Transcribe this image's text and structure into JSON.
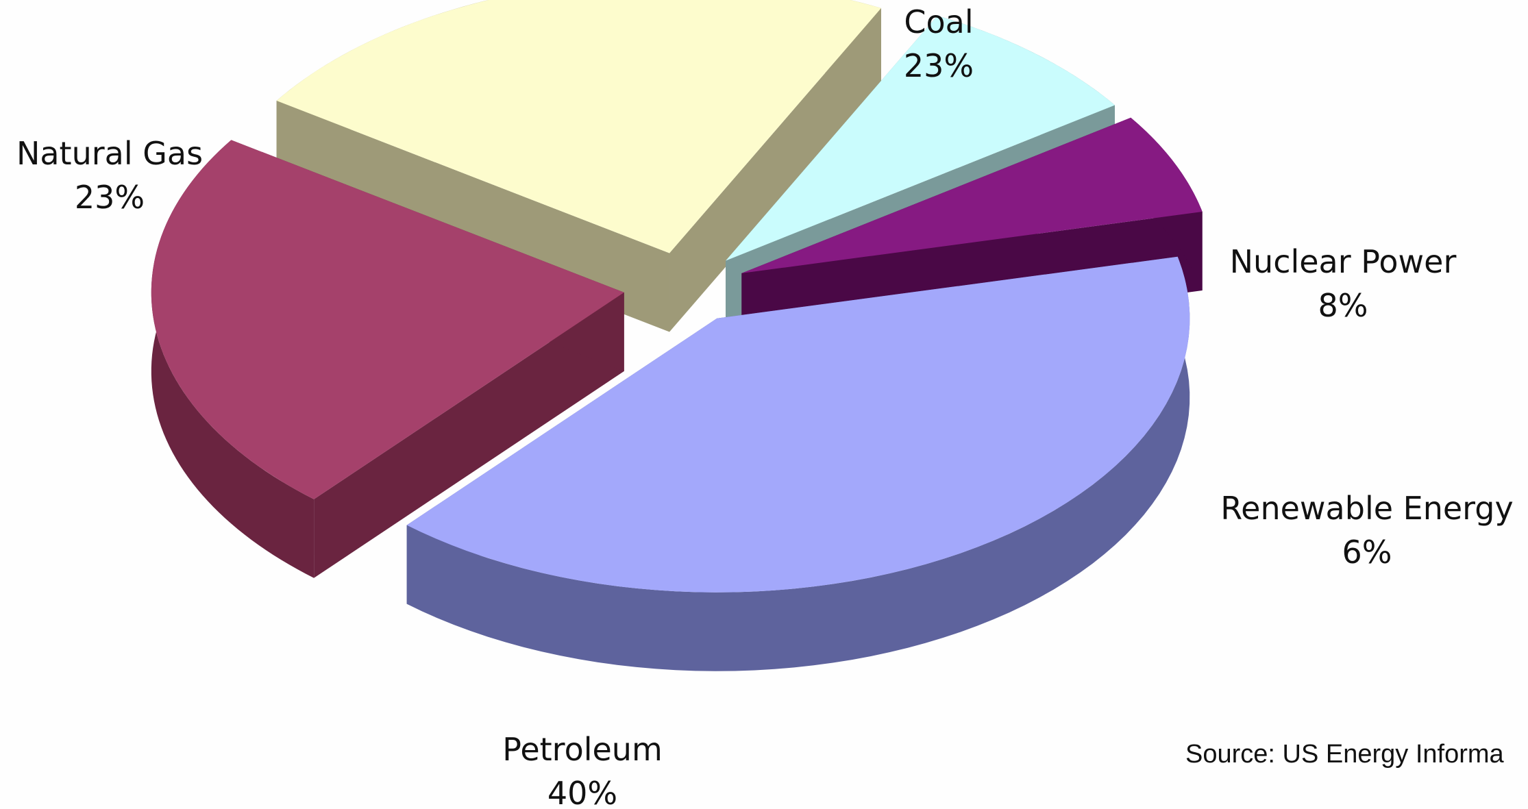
{
  "chart_data": {
    "type": "pie",
    "title": "",
    "slices": [
      {
        "label": "Petroleum",
        "value": 40,
        "value_label": "40%",
        "color": "#a3a8fb",
        "side_color": "#5e639d"
      },
      {
        "label": "Natural Gas",
        "value": 23,
        "value_label": "23%",
        "color": "#a5416b",
        "side_color": "#6a2440"
      },
      {
        "label": "Coal",
        "value": 23,
        "value_label": "23%",
        "color": "#fdfccd",
        "side_color": "#9e9a78"
      },
      {
        "label": "Nuclear Power",
        "value": 8,
        "value_label": "8%",
        "color": "#cafcfd",
        "side_color": "#7a9a9a"
      },
      {
        "label": "Renewable Energy",
        "value": 6,
        "value_label": "6%",
        "color": "#861a82",
        "side_color": "#4a0846"
      }
    ],
    "exploded": true,
    "style": "3d"
  },
  "source": "Source: US Energy Informa"
}
